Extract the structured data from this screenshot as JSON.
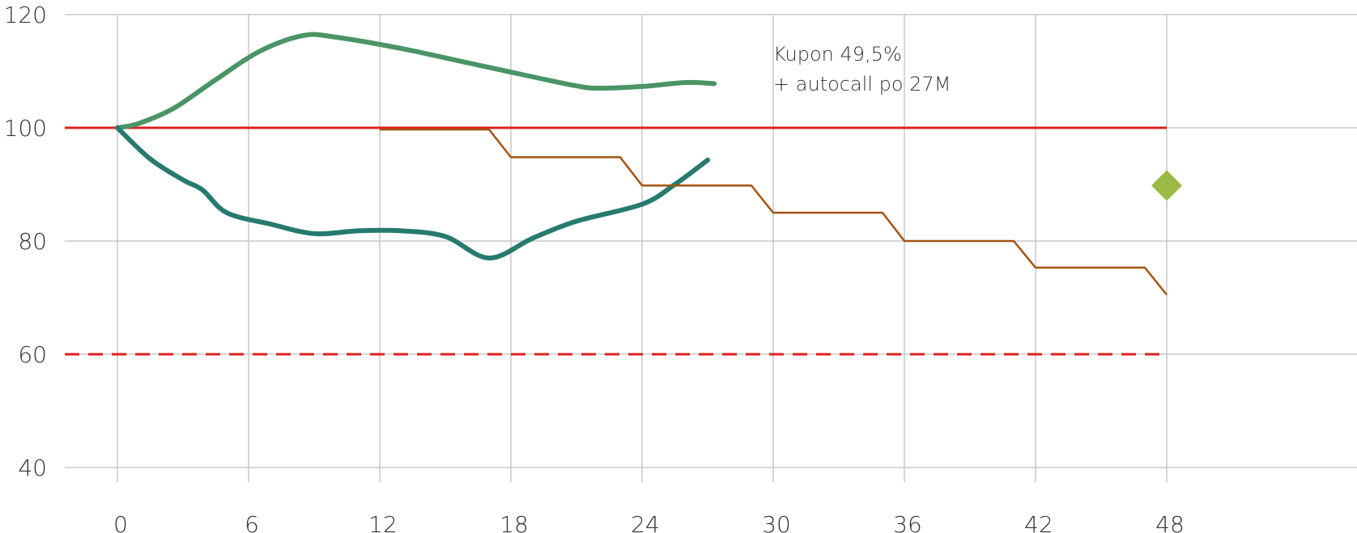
{
  "chart_data": {
    "type": "line",
    "xlim": [
      0,
      48
    ],
    "ylim": [
      40,
      120
    ],
    "x_ticks": [
      "0",
      "6",
      "12",
      "18",
      "24",
      "30",
      "36",
      "42",
      "48"
    ],
    "y_ticks": [
      "40",
      "60",
      "80",
      "100",
      "120"
    ],
    "grid": "vertical and horizontal",
    "annotation": [
      "Kupon 49,5%",
      "+ autocall po 27M"
    ],
    "series": [
      {
        "kind": "smooth-line",
        "color": "#4a9466",
        "points": [
          [
            0,
            100
          ],
          [
            1,
            100.8
          ],
          [
            2.6,
            103.5
          ],
          [
            4.5,
            108.5
          ],
          [
            6.5,
            113.5
          ],
          [
            8.5,
            116.3
          ],
          [
            10,
            116
          ],
          [
            13,
            114
          ],
          [
            16,
            111.5
          ],
          [
            19,
            109
          ],
          [
            21,
            107.4
          ],
          [
            22,
            107
          ],
          [
            24,
            107.3
          ],
          [
            26,
            108
          ],
          [
            27.3,
            107.8
          ]
        ]
      },
      {
        "kind": "smooth-line",
        "color": "#267a6e",
        "points": [
          [
            0,
            100
          ],
          [
            1.5,
            94.5
          ],
          [
            3,
            90.8
          ],
          [
            3.9,
            89
          ],
          [
            5,
            85
          ],
          [
            7,
            83
          ],
          [
            9,
            81.3
          ],
          [
            11,
            81.8
          ],
          [
            13,
            81.8
          ],
          [
            15,
            80.8
          ],
          [
            17,
            77
          ],
          [
            19,
            80.5
          ],
          [
            21,
            83.5
          ],
          [
            24,
            86.5
          ],
          [
            25.5,
            90
          ],
          [
            27,
            94.3
          ]
        ]
      },
      {
        "kind": "step",
        "color": "#a35411",
        "points": [
          [
            12,
            99.7
          ],
          [
            17,
            99.7
          ],
          [
            18,
            94.8
          ],
          [
            23,
            94.8
          ],
          [
            24,
            89.8
          ],
          [
            29,
            89.8
          ],
          [
            30,
            85
          ],
          [
            35,
            85
          ],
          [
            36,
            80
          ],
          [
            41,
            80
          ],
          [
            42,
            75.3
          ],
          [
            47,
            75.3
          ],
          [
            48,
            70.5
          ]
        ]
      },
      {
        "kind": "level",
        "style": "solid",
        "color": "#e02020",
        "x": [
          0,
          48
        ],
        "y": 100
      },
      {
        "kind": "level",
        "style": "dashed",
        "color": "#e02020",
        "x": [
          0,
          48
        ],
        "y": 60
      },
      {
        "kind": "marker",
        "shape": "diamond",
        "color": "#9cbb46",
        "x": 48,
        "y": 89.8
      }
    ]
  }
}
